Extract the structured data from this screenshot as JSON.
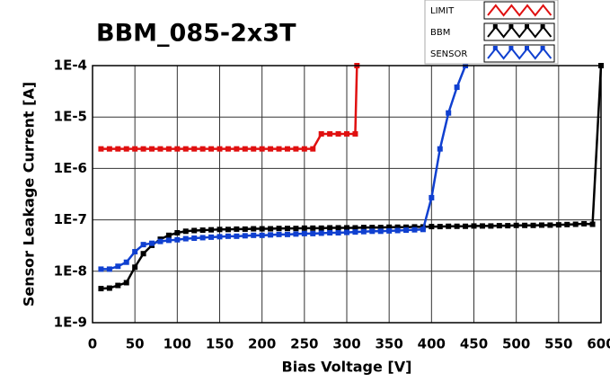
{
  "chart_data": {
    "type": "line",
    "title": "BBM_085-2x3T",
    "x_label": "Bias Voltage [V]",
    "y_label": "Sensor Leakage Current [A]",
    "xlim": [
      0,
      600
    ],
    "xticks": [
      0,
      50,
      100,
      150,
      200,
      250,
      300,
      350,
      400,
      450,
      500,
      550,
      600
    ],
    "ylim": [
      1e-09,
      0.0001
    ],
    "log_y": true,
    "yticks": [
      {
        "value": 1e-09,
        "label": "1E-9"
      },
      {
        "value": 1e-08,
        "label": "1E-8"
      },
      {
        "value": 1e-07,
        "label": "1E-7"
      },
      {
        "value": 1e-06,
        "label": "1E-6"
      },
      {
        "value": 1e-05,
        "label": "1E-5"
      },
      {
        "value": 0.0001,
        "label": "1E-4"
      }
    ],
    "grid": true,
    "legend": "top-right",
    "series": [
      {
        "name": "LIMIT",
        "color": "#e01010",
        "x": [
          10,
          20,
          30,
          40,
          50,
          60,
          70,
          80,
          90,
          100,
          110,
          120,
          130,
          140,
          150,
          160,
          170,
          180,
          190,
          200,
          210,
          220,
          230,
          240,
          250,
          260,
          270,
          280,
          290,
          300,
          310,
          312
        ],
        "values": [
          2.4e-06,
          2.4e-06,
          2.4e-06,
          2.4e-06,
          2.4e-06,
          2.4e-06,
          2.4e-06,
          2.4e-06,
          2.4e-06,
          2.4e-06,
          2.4e-06,
          2.4e-06,
          2.4e-06,
          2.4e-06,
          2.4e-06,
          2.4e-06,
          2.4e-06,
          2.4e-06,
          2.4e-06,
          2.4e-06,
          2.4e-06,
          2.4e-06,
          2.4e-06,
          2.4e-06,
          2.4e-06,
          2.4e-06,
          4.7e-06,
          4.7e-06,
          4.7e-06,
          4.7e-06,
          4.7e-06,
          0.0001
        ]
      },
      {
        "name": "BBM",
        "color": "#000000",
        "x": [
          10,
          20,
          30,
          40,
          50,
          60,
          70,
          80,
          90,
          100,
          110,
          120,
          130,
          140,
          150,
          160,
          170,
          180,
          190,
          200,
          210,
          220,
          230,
          240,
          250,
          260,
          270,
          280,
          290,
          300,
          310,
          320,
          330,
          340,
          350,
          360,
          370,
          380,
          390,
          400,
          410,
          420,
          430,
          440,
          450,
          460,
          470,
          480,
          490,
          500,
          510,
          520,
          530,
          540,
          550,
          560,
          570,
          580,
          590,
          600
        ],
        "values": [
          4.6e-09,
          4.7e-09,
          5.3e-09,
          6e-09,
          1.2e-08,
          2.2e-08,
          3.2e-08,
          4.2e-08,
          5e-08,
          5.6e-08,
          6e-08,
          6.2e-08,
          6.3e-08,
          6.4e-08,
          6.5e-08,
          6.5e-08,
          6.6e-08,
          6.6e-08,
          6.7e-08,
          6.7e-08,
          6.7e-08,
          6.8e-08,
          6.8e-08,
          6.8e-08,
          6.9e-08,
          6.9e-08,
          6.9e-08,
          7e-08,
          7e-08,
          7e-08,
          7e-08,
          7.1e-08,
          7.1e-08,
          7.1e-08,
          7.2e-08,
          7.2e-08,
          7.2e-08,
          7.3e-08,
          7.3e-08,
          7.4e-08,
          7.4e-08,
          7.5e-08,
          7.5e-08,
          7.5e-08,
          7.6e-08,
          7.6e-08,
          7.6e-08,
          7.7e-08,
          7.7e-08,
          7.8e-08,
          7.8e-08,
          7.8e-08,
          7.9e-08,
          7.9e-08,
          8e-08,
          8.1e-08,
          8.2e-08,
          8.4e-08,
          8.2e-08,
          0.0001
        ]
      },
      {
        "name": "SENSOR",
        "color": "#1040d0",
        "x": [
          10,
          20,
          30,
          40,
          50,
          60,
          70,
          80,
          90,
          100,
          110,
          120,
          130,
          140,
          150,
          160,
          170,
          180,
          190,
          200,
          210,
          220,
          230,
          240,
          250,
          260,
          270,
          280,
          290,
          300,
          310,
          320,
          330,
          340,
          350,
          360,
          370,
          380,
          390,
          400,
          410,
          420,
          430,
          440
        ],
        "values": [
          1.1e-08,
          1.1e-08,
          1.25e-08,
          1.5e-08,
          2.4e-08,
          3.3e-08,
          3.5e-08,
          3.8e-08,
          4e-08,
          4.1e-08,
          4.3e-08,
          4.4e-08,
          4.5e-08,
          4.6e-08,
          4.7e-08,
          4.8e-08,
          4.8e-08,
          4.9e-08,
          5e-08,
          5e-08,
          5.1e-08,
          5.2e-08,
          5.2e-08,
          5.3e-08,
          5.4e-08,
          5.4e-08,
          5.5e-08,
          5.6e-08,
          5.6e-08,
          5.7e-08,
          5.8e-08,
          5.9e-08,
          6e-08,
          6e-08,
          6.1e-08,
          6.2e-08,
          6.3e-08,
          6.4e-08,
          6.5e-08,
          2.7e-07,
          2.4e-06,
          1.2e-05,
          3.8e-05,
          0.0001
        ]
      }
    ]
  }
}
